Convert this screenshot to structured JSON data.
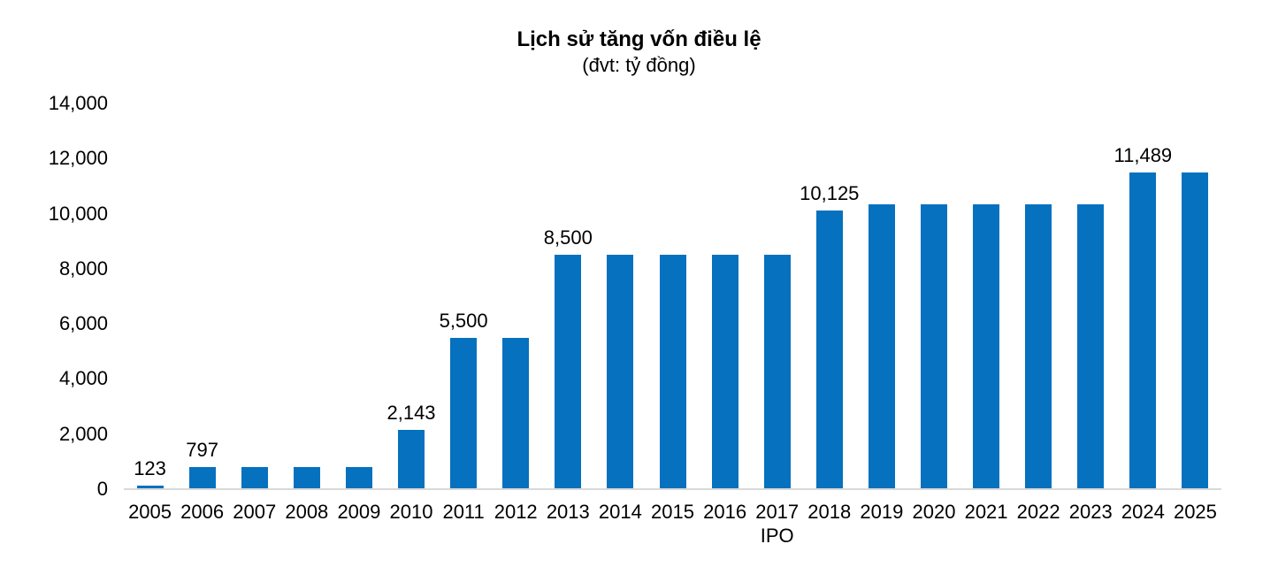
{
  "chart_data": {
    "type": "bar",
    "title": "Lịch sử tăng vốn điều lệ",
    "subtitle": "(đvt: tỷ đồng)",
    "categories": [
      "2005",
      "2006",
      "2007",
      "2008",
      "2009",
      "2010",
      "2011",
      "2012",
      "2013",
      "2014",
      "2015",
      "2016",
      "2017",
      "2018",
      "2019",
      "2020",
      "2021",
      "2022",
      "2023",
      "2024",
      "2025"
    ],
    "values": [
      123,
      797,
      797,
      797,
      797,
      2143,
      5500,
      5500,
      8500,
      8500,
      8500,
      8500,
      8500,
      10125,
      10350,
      10350,
      10350,
      10350,
      10350,
      11489,
      11489
    ],
    "value_labels": [
      "123",
      "797",
      null,
      null,
      null,
      "2,143",
      "5,500",
      null,
      "8,500",
      null,
      null,
      null,
      null,
      "10,125",
      null,
      null,
      null,
      null,
      null,
      "11,489",
      null
    ],
    "y_ticks": [
      "0",
      "2,000",
      "4,000",
      "6,000",
      "8,000",
      "10,000",
      "12,000",
      "14,000"
    ],
    "ylim": [
      0,
      14000
    ],
    "grid": false,
    "legend": null,
    "xlabel": "",
    "ylabel": "",
    "x_axis_annotation": {
      "label": "IPO",
      "under_category": "2017"
    },
    "bar_color": "#0571BF",
    "axis_line_color": "#D9D9D9",
    "text_color": "#000000"
  }
}
